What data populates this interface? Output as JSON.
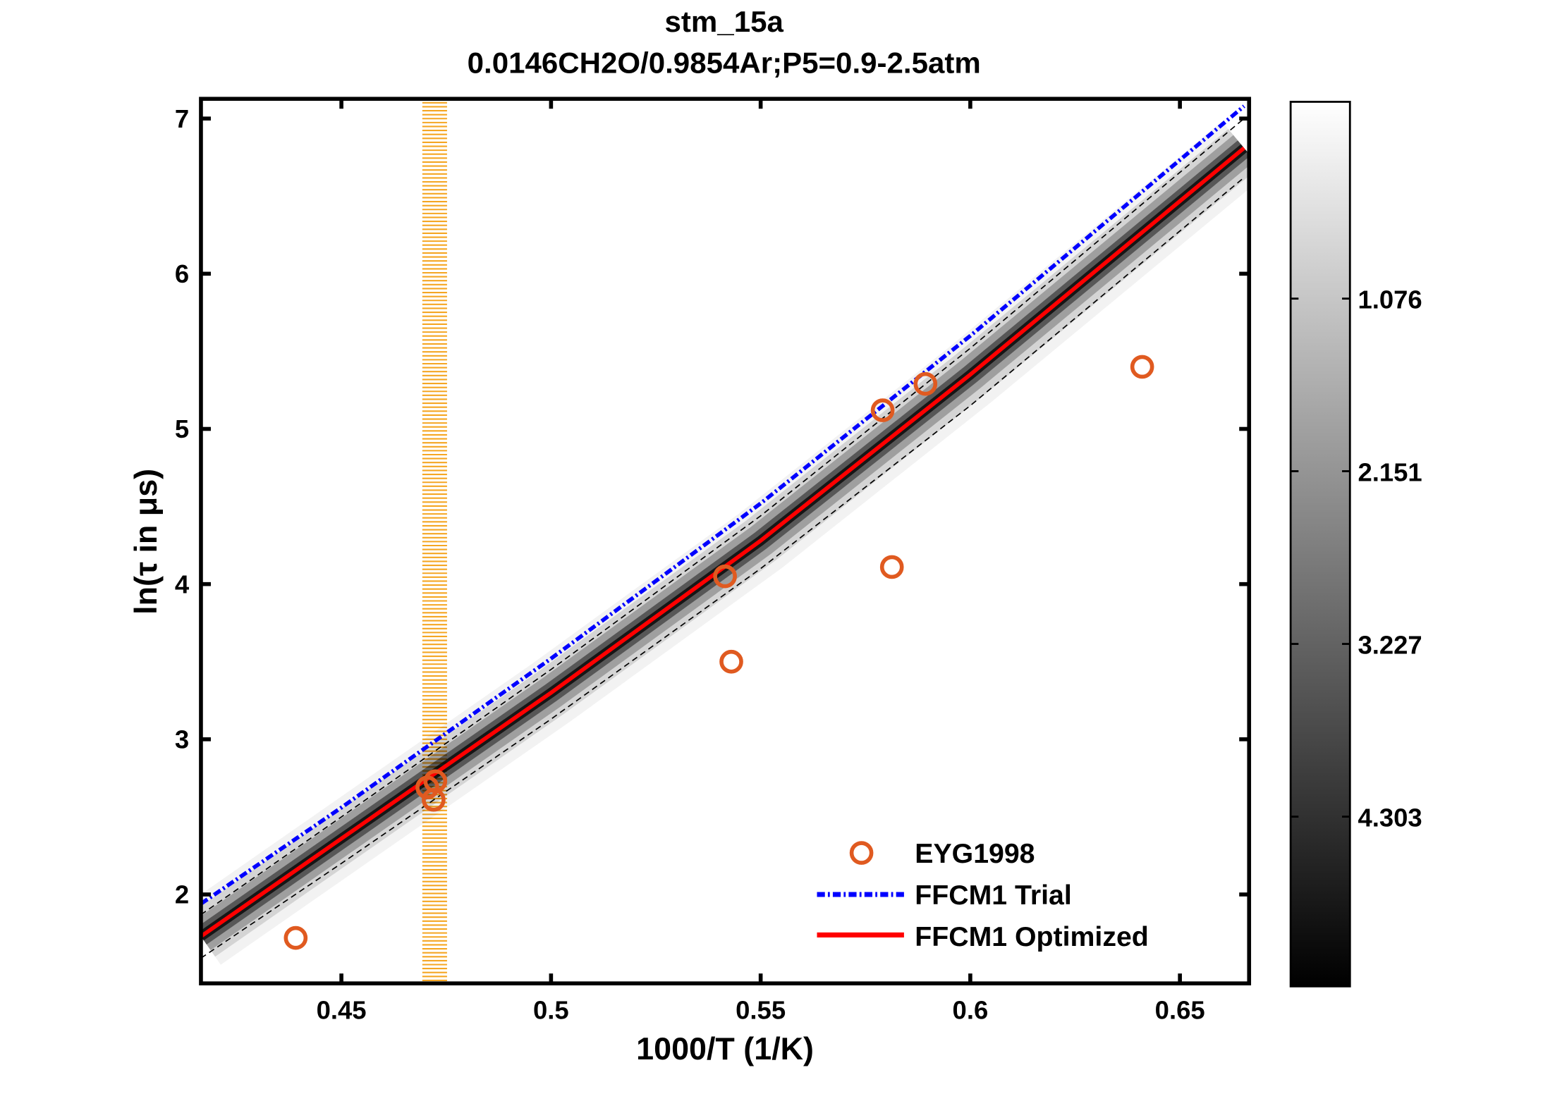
{
  "chart_data": {
    "type": "line",
    "title": "stm_15a",
    "subtitle": "0.0146CH2O/0.9854Ar;P5=0.9-2.5atm",
    "xlabel": "1000/T (1/K)",
    "ylabel": "ln(τ in μs)",
    "xlim": [
      0.4165,
      0.6665
    ],
    "ylim": [
      1.427,
      7.127
    ],
    "xticks": [
      0.45,
      0.5,
      0.55,
      0.6,
      0.65
    ],
    "xtick_labels": [
      "0.45",
      "0.5",
      "0.55",
      "0.6",
      "0.65"
    ],
    "yticks": [
      2,
      3,
      4,
      5,
      6,
      7
    ],
    "ytick_labels": [
      "2",
      "3",
      "4",
      "5",
      "6",
      "7"
    ],
    "grid": false,
    "legend_placement": "bottom-right",
    "series": [
      {
        "name": "EYG1998",
        "kind": "scatter",
        "marker": "circle",
        "color": "#e05a20",
        "x": [
          0.4391,
          0.4705,
          0.4724,
          0.472,
          0.5415,
          0.543,
          0.5791,
          0.5813,
          0.5893,
          0.641
        ],
        "y": [
          1.72,
          2.69,
          2.73,
          2.61,
          4.05,
          3.5,
          5.12,
          4.11,
          5.29,
          5.4
        ]
      },
      {
        "name": "FFCM1 Trial",
        "kind": "line",
        "style": "dash-dot",
        "color": "#0000ff",
        "x": [
          0.4165,
          0.45,
          0.5,
          0.55,
          0.6,
          0.6653
        ],
        "y": [
          1.94,
          2.56,
          3.52,
          4.52,
          5.6,
          7.08
        ]
      },
      {
        "name": "FFCM1 Optimized",
        "kind": "line",
        "style": "solid",
        "color": "#ff0000",
        "x": [
          0.4165,
          0.45,
          0.5,
          0.55,
          0.6,
          0.6653
        ],
        "y": [
          1.73,
          2.36,
          3.3,
          4.28,
          5.35,
          6.81
        ]
      }
    ],
    "uncertainty_bounds": {
      "color": "#000000",
      "style": "dashed",
      "upper": {
        "x": [
          0.4165,
          0.45,
          0.5,
          0.55,
          0.6,
          0.6653
        ],
        "y": [
          1.87,
          2.5,
          3.45,
          4.44,
          5.52,
          7.0
        ]
      },
      "lower": {
        "x": [
          0.4165,
          0.45,
          0.5,
          0.55,
          0.6,
          0.6653
        ],
        "y": [
          1.59,
          2.2,
          3.13,
          4.1,
          5.15,
          6.62
        ]
      }
    },
    "highlight_band": {
      "x_range": [
        0.4693,
        0.4752
      ],
      "color": "#f5a623"
    },
    "colorbar": {
      "colormap": "gray-reversed",
      "range": [
        -0.15,
        5.36
      ],
      "ticks": [
        1.076,
        2.151,
        3.227,
        4.303
      ],
      "tick_labels": [
        "1.076",
        "2.151",
        "3.227",
        "4.303"
      ]
    }
  }
}
